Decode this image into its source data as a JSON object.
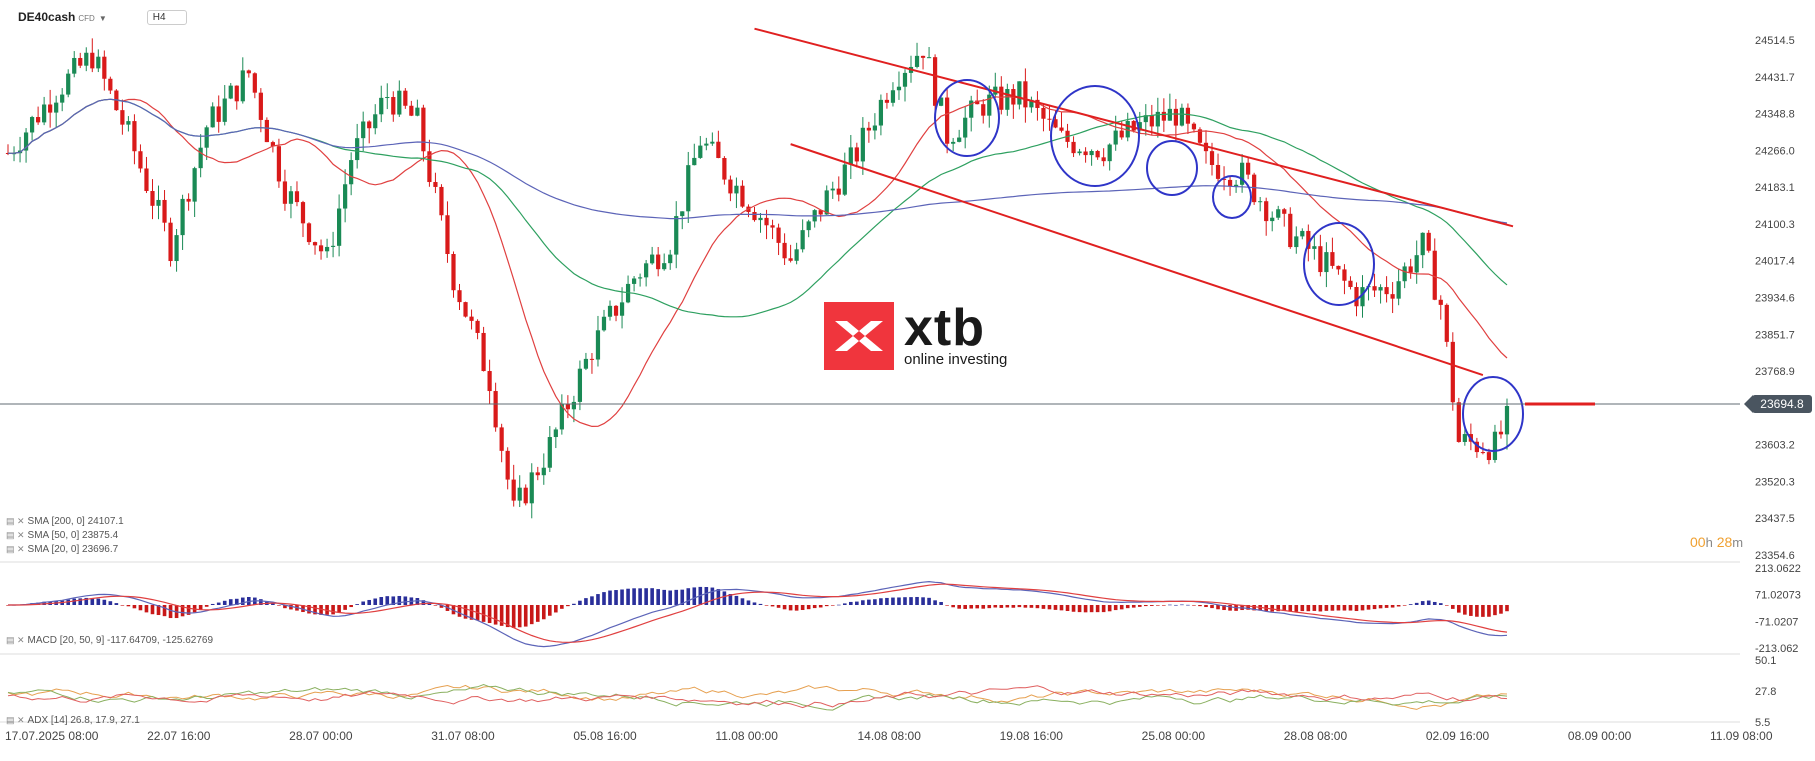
{
  "header": {
    "symbol": "DE40cash",
    "symbol_type": "CFD",
    "timeframe": "H4"
  },
  "logo": {
    "brand": "xtb",
    "tagline": "online investing",
    "brand_color": "#f0353d"
  },
  "indicators": {
    "sma200": "SMA [200, 0]  24107.1",
    "sma50": "SMA [50, 0]  23875.4",
    "sma20": "SMA [20, 0]  23696.7",
    "macd": "MACD [20, 50, 9] -117.64709,  -125.62769",
    "adx": "ADX [14]  26.8,  17.9,  27.1"
  },
  "timer": {
    "hours": "00",
    "h_unit": "h",
    "minutes": "28",
    "m_unit": "m"
  },
  "colors": {
    "bull": "#1a8a55",
    "bear": "#d91a1a",
    "sma20": "#e04040",
    "sma50": "#2ea060",
    "sma200": "#5c64b8",
    "channel": "#e02020",
    "circle": "#2f35c8"
  },
  "chart_data": {
    "type": "candlestick",
    "price_axis": {
      "ticks": [
        "24514.5",
        "24431.7",
        "24348.8",
        "24266.0",
        "24183.1",
        "24100.3",
        "24017.4",
        "23934.6",
        "23851.7",
        "23768.9",
        "23603.2",
        "23520.3",
        "23437.5",
        "23354.6"
      ],
      "ylim": [
        23354.6,
        24514.5
      ],
      "current_price": "23694.8"
    },
    "time_axis": [
      "17.07.2025  08:00",
      "22.07  16:00",
      "28.07  00:00",
      "31.07  08:00",
      "05.08  16:00",
      "11.08  00:00",
      "14.08  08:00",
      "19.08  16:00",
      "25.08  00:00",
      "28.08  08:00",
      "02.09  16:00",
      "08.09  00:00",
      "11.09  08:00"
    ],
    "candles_count": 250,
    "channel": {
      "upper": [
        [
          124,
          24540
        ],
        [
          250,
          24185
        ]
      ],
      "lower": [
        [
          130,
          24280
        ],
        [
          245,
          23850
        ]
      ]
    },
    "macd_axis": [
      "213.0622",
      "71.02073",
      "-71.0207",
      "-213.062"
    ],
    "adx_axis": [
      "50.1",
      "27.8",
      "5.5"
    ]
  }
}
